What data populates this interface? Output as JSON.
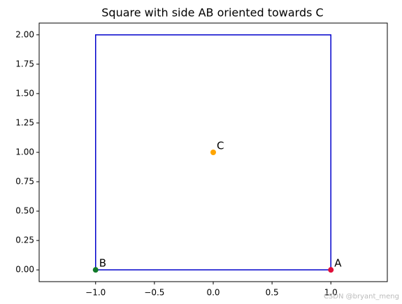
{
  "chart_data": {
    "type": "line",
    "title": "Square with side AB oriented towards C",
    "series": [
      {
        "color": "#0000cc",
        "x": [
          1,
          -1,
          -1,
          1,
          1
        ],
        "values": [
          0,
          0,
          2,
          2,
          0
        ]
      }
    ],
    "points": [
      {
        "label": "A",
        "x": 1,
        "y": 0,
        "color": "#e0103a"
      },
      {
        "label": "B",
        "x": -1,
        "y": 0,
        "color": "#117a2a"
      },
      {
        "label": "C",
        "x": 0,
        "y": 1,
        "color": "#ffa500"
      }
    ],
    "xlim": [
      -1.48,
      1.48
    ],
    "ylim": [
      -0.1,
      2.1
    ],
    "xticks": [
      {
        "value": -1,
        "label": "−1.0"
      },
      {
        "value": -0.5,
        "label": "−0.5"
      },
      {
        "value": 0,
        "label": "0.0"
      },
      {
        "value": 0.5,
        "label": "0.5"
      },
      {
        "value": 1,
        "label": "1.0"
      }
    ],
    "yticks": [
      {
        "value": 0,
        "label": "0.00"
      },
      {
        "value": 0.25,
        "label": "0.25"
      },
      {
        "value": 0.5,
        "label": "0.50"
      },
      {
        "value": 0.75,
        "label": "0.75"
      },
      {
        "value": 1,
        "label": "1.00"
      },
      {
        "value": 1.25,
        "label": "1.25"
      },
      {
        "value": 1.5,
        "label": "1.50"
      },
      {
        "value": 1.75,
        "label": "1.75"
      },
      {
        "value": 2,
        "label": "2.00"
      }
    ],
    "watermark": "CSDN @bryant_meng"
  }
}
